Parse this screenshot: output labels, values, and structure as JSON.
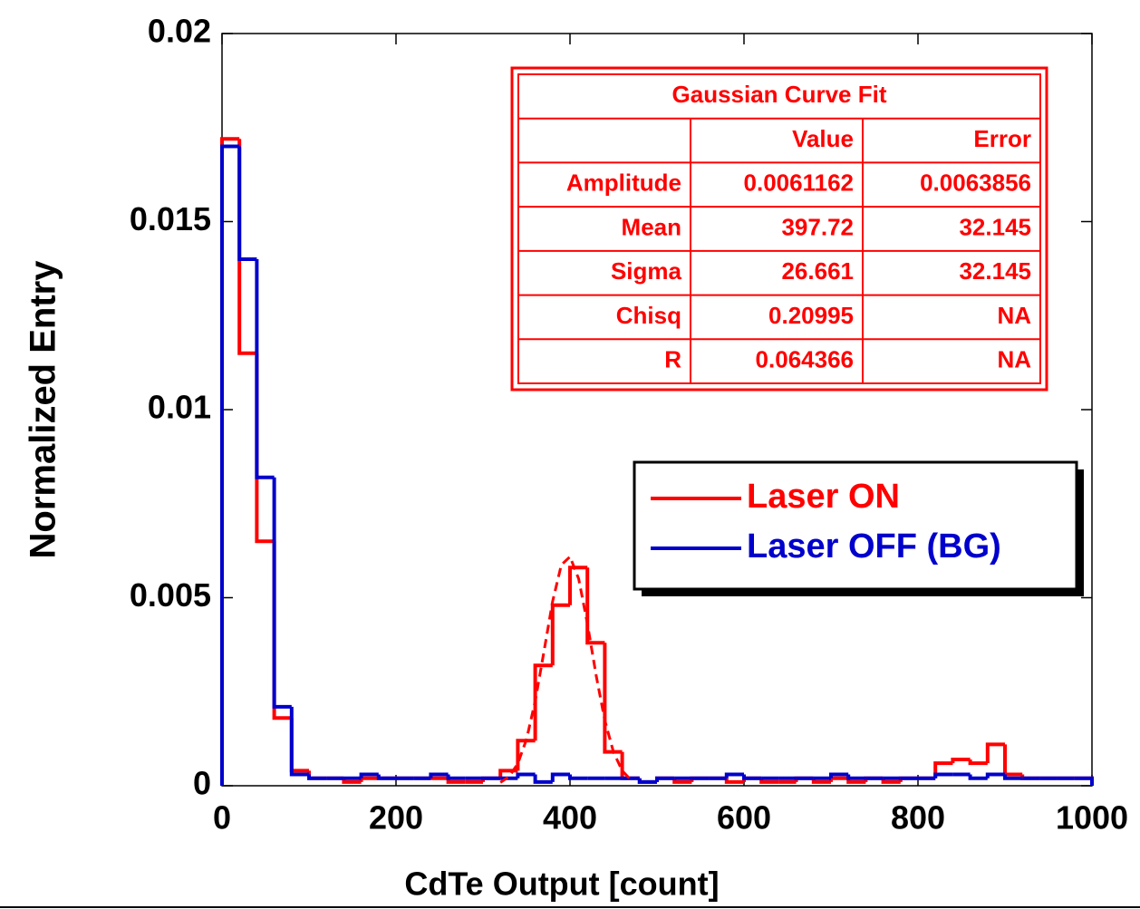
{
  "chart_data": {
    "type": "histogram",
    "x_label": "CdTe Output [count]",
    "y_label": "Normalized Entry",
    "xlim": [
      0,
      1000
    ],
    "ylim": [
      0,
      0.02
    ],
    "xticks": [
      0,
      200,
      400,
      600,
      800,
      1000
    ],
    "yticks": [
      0,
      0.005,
      0.01,
      0.015,
      0.02
    ],
    "bins": [
      0,
      20,
      40,
      60,
      80,
      100,
      120,
      140,
      160,
      180,
      200,
      220,
      240,
      260,
      280,
      300,
      320,
      340,
      360,
      380,
      400,
      420,
      440,
      460,
      480,
      500,
      520,
      540,
      560,
      580,
      600,
      620,
      640,
      660,
      680,
      700,
      720,
      740,
      760,
      780,
      800,
      820,
      840,
      860,
      880,
      900,
      920,
      940,
      960,
      980,
      1000
    ],
    "series": [
      {
        "name": "Laser ON",
        "color": "#ff0000",
        "values": [
          0.0172,
          0.0115,
          0.0065,
          0.0018,
          0.0004,
          0.0002,
          0.0002,
          0.0001,
          0.0002,
          0.0002,
          0.0002,
          0.0002,
          0.0002,
          0.0001,
          0.0001,
          0.0002,
          0.0004,
          0.0012,
          0.0032,
          0.0048,
          0.0058,
          0.0038,
          0.0009,
          0.0002,
          0.0001,
          0.0002,
          0.0001,
          0.0002,
          0.0002,
          0.0001,
          0.0002,
          0.0001,
          0.0001,
          0.0002,
          0.0001,
          0.0002,
          0.0001,
          0.0002,
          0.0001,
          0.0002,
          0.0002,
          0.0006,
          0.0007,
          0.0006,
          0.0011,
          0.0003,
          0.0002,
          0.0002,
          0.0002,
          0.0002
        ]
      },
      {
        "name": "Laser OFF (BG)",
        "color": "#0000cc",
        "values": [
          0.017,
          0.014,
          0.0082,
          0.0021,
          0.0003,
          0.0002,
          0.0002,
          0.0002,
          0.0003,
          0.0002,
          0.0002,
          0.0002,
          0.0003,
          0.0002,
          0.0002,
          0.0002,
          0.0002,
          0.0003,
          0.0001,
          0.0003,
          0.0002,
          0.0002,
          0.0002,
          0.0002,
          0.0001,
          0.0002,
          0.0002,
          0.0002,
          0.0002,
          0.0003,
          0.0002,
          0.0002,
          0.0002,
          0.0002,
          0.0002,
          0.0003,
          0.0002,
          0.0002,
          0.0002,
          0.0002,
          0.0002,
          0.0003,
          0.0003,
          0.0002,
          0.0003,
          0.0002,
          0.0002,
          0.0002,
          0.0002,
          0.0002
        ]
      }
    ],
    "fit_curve": {
      "color": "#ff0000",
      "dashed": true,
      "x": [
        320,
        330,
        340,
        350,
        360,
        370,
        380,
        390,
        400,
        410,
        420,
        430,
        440,
        450,
        460,
        470
      ],
      "values": [
        8.74e-05,
        0.000243,
        0.000588,
        0.001234,
        0.00225,
        0.00356,
        0.0049,
        0.00587,
        0.00609,
        0.0055,
        0.00431,
        0.00294,
        0.00174,
        0.000894,
        0.000399,
        0.000155
      ]
    },
    "fit_table": {
      "title": "Gaussian Curve Fit",
      "header": [
        "Value",
        "Error"
      ],
      "rows": [
        [
          "Amplitude",
          "0.0061162",
          "0.0063856"
        ],
        [
          "Mean",
          "397.72",
          "32.145"
        ],
        [
          "Sigma",
          "26.661",
          "32.145"
        ],
        [
          "Chisq",
          "0.20995",
          "NA"
        ],
        [
          "R",
          "0.064366",
          "NA"
        ]
      ]
    }
  }
}
